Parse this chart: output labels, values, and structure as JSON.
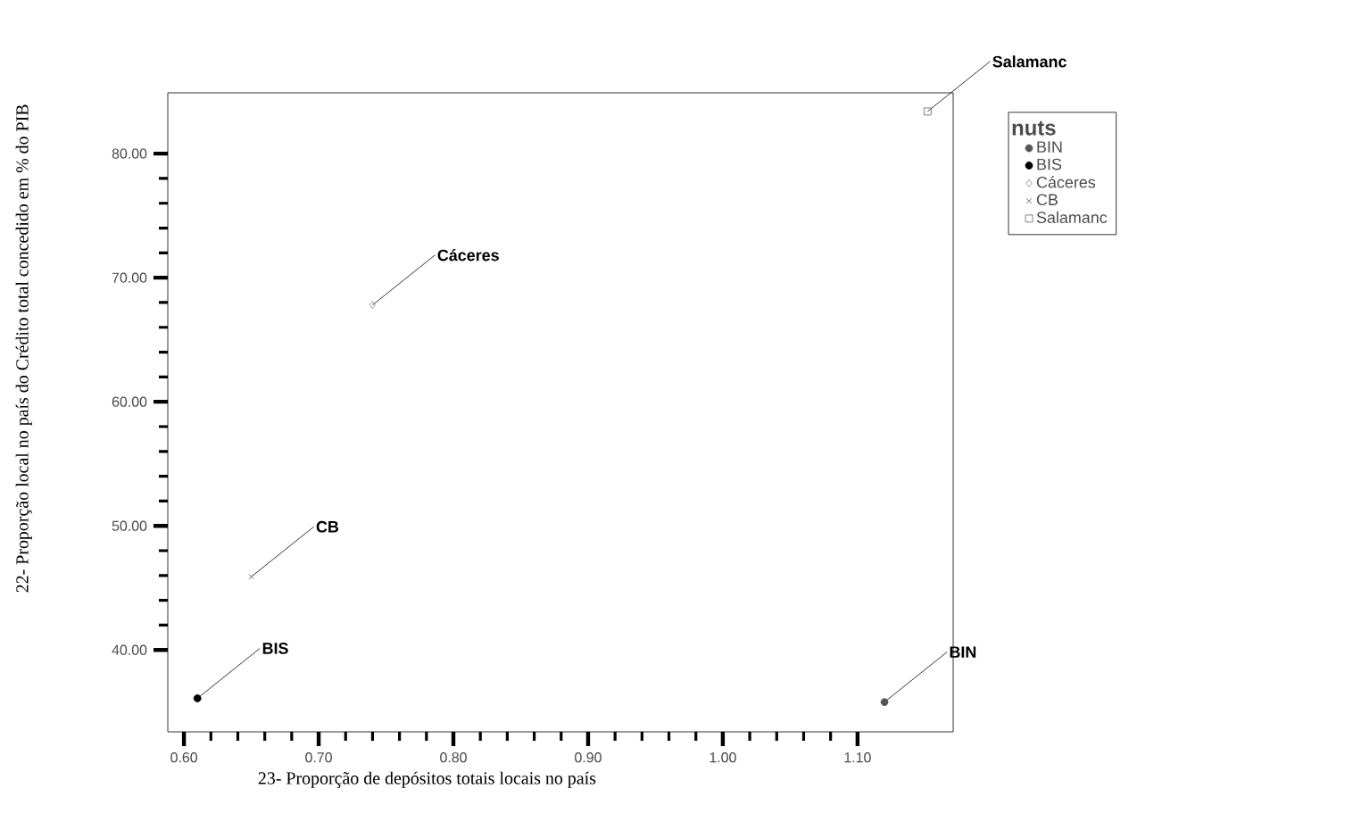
{
  "chart_data": {
    "type": "scatter",
    "xlabel": "23- Proporção de depósitos totais locais no país",
    "ylabel": "22- Proporção local no país do Crédito total concedido em % do PIB",
    "legend_title": "nuts",
    "xlim": [
      0.588,
      1.171
    ],
    "ylim": [
      33.4,
      84.9
    ],
    "xticks": [
      {
        "value": 0.6,
        "label": "0.60"
      },
      {
        "value": 0.7,
        "label": "0.70"
      },
      {
        "value": 0.8,
        "label": "0.80"
      },
      {
        "value": 0.9,
        "label": "0.90"
      },
      {
        "value": 1.0,
        "label": "1.00"
      },
      {
        "value": 1.1,
        "label": "1.10"
      }
    ],
    "yticks": [
      {
        "value": 40,
        "label": "40.00"
      },
      {
        "value": 50,
        "label": "50.00"
      },
      {
        "value": 60,
        "label": "60.00"
      },
      {
        "value": 70,
        "label": "70.00"
      },
      {
        "value": 80,
        "label": "80.00"
      }
    ],
    "grid": false,
    "legend": "top right",
    "series": [
      {
        "name": "BIN",
        "color": "#555555",
        "marker": "circle",
        "x": [
          1.12
        ],
        "values": [
          35.8
        ]
      },
      {
        "name": "BIS",
        "color": "#000000",
        "marker": "circle",
        "x": [
          0.61
        ],
        "values": [
          36.1
        ]
      },
      {
        "name": "Cáceres",
        "color": "#888888",
        "marker": "diamond",
        "x": [
          0.74
        ],
        "values": [
          67.8
        ]
      },
      {
        "name": "CB",
        "color": "#555555",
        "marker": "cross",
        "x": [
          0.65
        ],
        "values": [
          45.9
        ]
      },
      {
        "name": "Salamanc",
        "color": "#666666",
        "marker": "square",
        "x": [
          1.152
        ],
        "values": [
          83.4
        ]
      }
    ]
  }
}
